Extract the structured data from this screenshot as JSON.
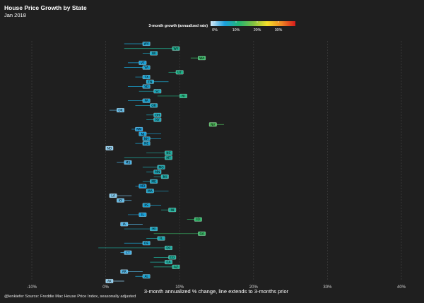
{
  "header": {
    "title": "House Price Growth by State",
    "subtitle": "Jan 2018"
  },
  "caption": "@lenkiefer Source: Freddie Mac House Price Index, seasonally adjusted",
  "legend": {
    "title": "3-month growth (annualized rate)",
    "ticks": [
      "0%",
      "10%",
      "20%",
      "30%"
    ],
    "tick_values": [
      0,
      10,
      20,
      30
    ],
    "range": [
      -2,
      38
    ],
    "colors": [
      "#d6eaf8",
      "#1a9fde",
      "#22b573",
      "#7fc242",
      "#f5e02a",
      "#f08a24",
      "#d7191c"
    ]
  },
  "chart_data": {
    "type": "scatter",
    "title": "House Price Growth by State",
    "subtitle": "Jan 2018",
    "xlabel": "3-month annualized % change, line extends to 3-months prior",
    "ylabel": "",
    "xlim": [
      -12,
      42
    ],
    "xticks": [
      -10,
      0,
      10,
      20,
      30,
      40
    ],
    "xtick_labels": [
      "-10%",
      "0%",
      "10%",
      "20%",
      "30%",
      "40%"
    ],
    "grid": true,
    "series": [
      {
        "name": "3-month annualized growth",
        "points": [
          {
            "state": "WV",
            "value": 5.5,
            "prior": 2.5
          },
          {
            "state": "WY",
            "value": 9.5,
            "prior": 2.5
          },
          {
            "state": "WI",
            "value": 6.5,
            "prior": 5.0
          },
          {
            "state": "WA",
            "value": 13.0,
            "prior": 11.5
          },
          {
            "state": "VT",
            "value": 5.0,
            "prior": 3.0
          },
          {
            "state": "VA",
            "value": 5.5,
            "prior": 2.5
          },
          {
            "state": "UT",
            "value": 10.0,
            "prior": 8.5
          },
          {
            "state": "TX",
            "value": 5.5,
            "prior": 4.0
          },
          {
            "state": "TN",
            "value": 6.0,
            "prior": 8.5
          },
          {
            "state": "SD",
            "value": 5.5,
            "prior": 3.0
          },
          {
            "state": "SC",
            "value": 7.0,
            "prior": 4.5
          },
          {
            "state": "RI",
            "value": 10.5,
            "prior": 7.0
          },
          {
            "state": "PA",
            "value": 5.5,
            "prior": 3.0
          },
          {
            "state": "OR",
            "value": 6.5,
            "prior": 4.0
          },
          {
            "state": "OK",
            "value": 2.0,
            "prior": 0.5
          },
          {
            "state": "OH",
            "value": 7.0,
            "prior": 5.5
          },
          {
            "state": "NY",
            "value": 7.0,
            "prior": 5.5
          },
          {
            "state": "NV",
            "value": 14.5,
            "prior": 16.0
          },
          {
            "state": "NM",
            "value": 4.5,
            "prior": 3.5
          },
          {
            "state": "NJ",
            "value": 5.0,
            "prior": 7.5
          },
          {
            "state": "NH",
            "value": 5.5,
            "prior": 7.5
          },
          {
            "state": "NE",
            "value": 5.5,
            "prior": 4.0
          },
          {
            "state": "ND",
            "value": 0.5,
            "prior": 0.5
          },
          {
            "state": "NC",
            "value": 8.5,
            "prior": 5.5
          },
          {
            "state": "MT",
            "value": 8.5,
            "prior": 2.5
          },
          {
            "state": "MS",
            "value": 3.0,
            "prior": 1.5
          },
          {
            "state": "MO",
            "value": 7.5,
            "prior": 5.0
          },
          {
            "state": "MN",
            "value": 7.0,
            "prior": 5.5
          },
          {
            "state": "MI",
            "value": 8.0,
            "prior": 6.5
          },
          {
            "state": "ME",
            "value": 6.5,
            "prior": 5.0
          },
          {
            "state": "MD",
            "value": 5.0,
            "prior": 4.0
          },
          {
            "state": "MA",
            "value": 6.0,
            "prior": 8.5
          },
          {
            "state": "LA",
            "value": 1.0,
            "prior": 3.5
          },
          {
            "state": "KY",
            "value": 2.0,
            "prior": 3.5
          },
          {
            "state": "KS",
            "value": 5.5,
            "prior": 7.5
          },
          {
            "state": "IN",
            "value": 9.0,
            "prior": 7.5
          },
          {
            "state": "IL",
            "value": 5.0,
            "prior": 3.0
          },
          {
            "state": "ID",
            "value": 12.5,
            "prior": 11.0
          },
          {
            "state": "IA",
            "value": 2.5,
            "prior": 5.0
          },
          {
            "state": "HI",
            "value": 6.5,
            "prior": 2.5
          },
          {
            "state": "GA",
            "value": 13.0,
            "prior": 6.5
          },
          {
            "state": "FL",
            "value": 7.5,
            "prior": 5.5
          },
          {
            "state": "DE",
            "value": 5.5,
            "prior": 2.5
          },
          {
            "state": "DC",
            "value": 8.5,
            "prior": -1.0
          },
          {
            "state": "CT",
            "value": 3.0,
            "prior": 2.0
          },
          {
            "state": "CO",
            "value": 9.0,
            "prior": 6.5
          },
          {
            "state": "CA",
            "value": 8.5,
            "prior": 6.0
          },
          {
            "state": "AZ",
            "value": 9.5,
            "prior": 6.5
          },
          {
            "state": "AR",
            "value": 2.5,
            "prior": 5.0
          },
          {
            "state": "AL",
            "value": 5.5,
            "prior": 4.0
          },
          {
            "state": "AK",
            "value": 0.5,
            "prior": 2.5
          }
        ]
      }
    ]
  }
}
